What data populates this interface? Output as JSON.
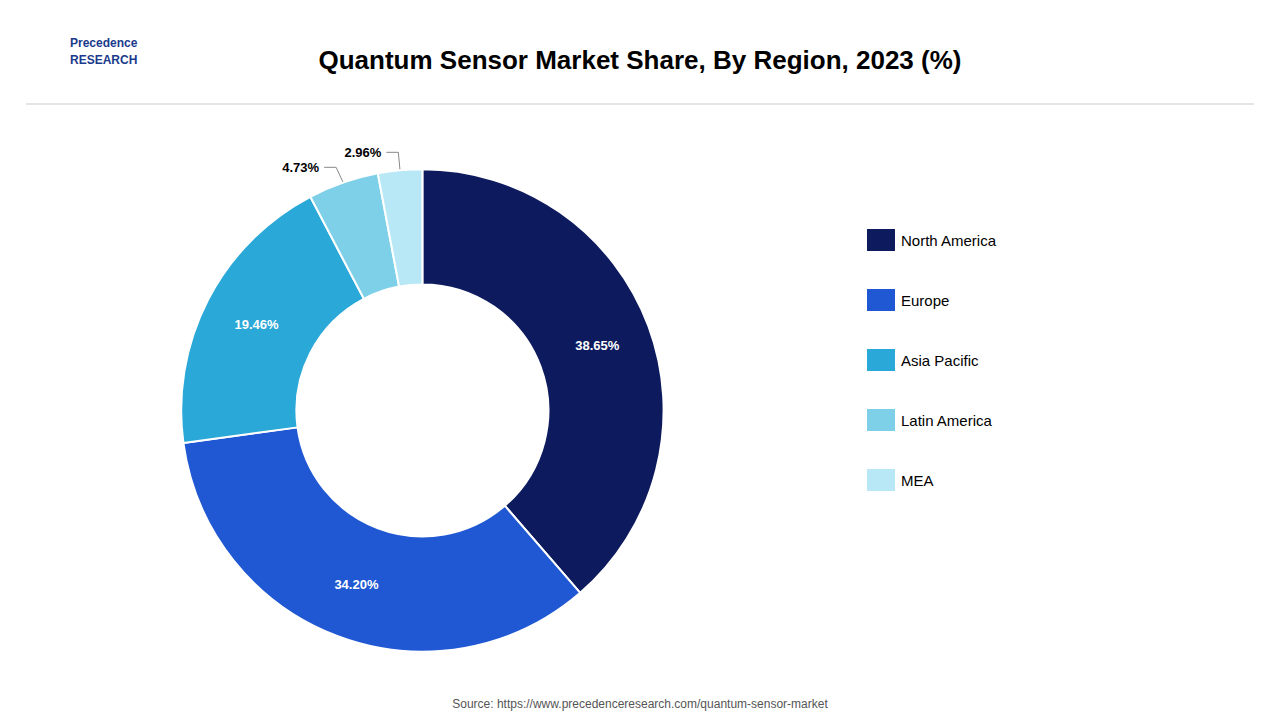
{
  "chart_data": {
    "type": "pie",
    "title": "Quantum Sensor Market Share, By Region, 2023 (%)",
    "categories": [
      "North America",
      "Europe",
      "Asia Pacific",
      "Latin America",
      "MEA"
    ],
    "values": [
      38.65,
      34.2,
      19.46,
      4.73,
      2.96
    ],
    "value_labels": [
      "38.65%",
      "34.20%",
      "19.46%",
      "4.73%",
      "2.96%"
    ],
    "colors": [
      "#0d1b5e",
      "#2058d4",
      "#2aa8d8",
      "#7ecfe8",
      "#b8e8f5"
    ],
    "data_labels": true,
    "legend": "right",
    "annotations": [
      "Source: https://www.precedenceresearch.com/quantum-sensor-market",
      "Precedence\nRESEARCH"
    ]
  }
}
